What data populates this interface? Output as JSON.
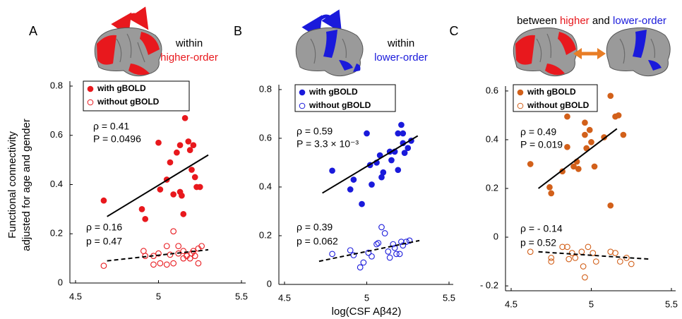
{
  "chart_data": [
    {
      "type": "scatter",
      "panel_label": "A",
      "header": [
        {
          "text": "within",
          "color": "#000000"
        },
        {
          "text": "higher-order",
          "color": "#e8181d"
        }
      ],
      "ylabel": [
        "Functional connectivity",
        "adjusted for age and gender"
      ],
      "xlim": [
        4.5,
        5.5
      ],
      "xticks": [
        4.5,
        5,
        5.5
      ],
      "ylim": [
        0,
        0.82
      ],
      "yticks": [
        0,
        0.2,
        0.4,
        0.6,
        0.8
      ],
      "series": [
        {
          "name": "with gBOLD",
          "color": "#e8181d",
          "marker": "filled",
          "x": [
            4.67,
            4.9,
            4.92,
            5.0,
            5.01,
            5.05,
            5.07,
            5.09,
            5.11,
            5.13,
            5.13,
            5.15,
            5.16,
            5.14,
            5.18,
            5.19,
            5.2,
            5.21,
            5.22,
            5.23,
            5.25
          ],
          "y": [
            0.335,
            0.3,
            0.26,
            0.57,
            0.38,
            0.42,
            0.49,
            0.36,
            0.53,
            0.56,
            0.37,
            0.28,
            0.67,
            0.355,
            0.575,
            0.54,
            0.46,
            0.56,
            0.43,
            0.39,
            0.39
          ]
        },
        {
          "name": "without gBOLD",
          "color": "#e8181d",
          "marker": "open",
          "x": [
            4.67,
            4.91,
            4.92,
            4.97,
            4.97,
            5.0,
            5.01,
            5.05,
            5.05,
            5.07,
            5.09,
            5.09,
            5.12,
            5.12,
            5.15,
            5.15,
            5.17,
            5.19,
            5.2,
            5.21,
            5.22,
            5.24,
            5.24,
            5.26
          ],
          "y": [
            0.07,
            0.13,
            0.11,
            0.075,
            0.11,
            0.12,
            0.08,
            0.15,
            0.075,
            0.115,
            0.21,
            0.08,
            0.15,
            0.12,
            0.1,
            0.13,
            0.11,
            0.1,
            0.12,
            0.13,
            0.11,
            0.08,
            0.14,
            0.15
          ]
        }
      ],
      "trend_lines": [
        {
          "style": "solid",
          "x": [
            4.69,
            5.3
          ],
          "y": [
            0.27,
            0.52
          ]
        },
        {
          "style": "dashed",
          "x": [
            4.69,
            5.3
          ],
          "y": [
            0.09,
            0.135
          ]
        }
      ],
      "annotations": [
        {
          "text": "ρ = 0.41",
          "color": "#000000"
        },
        {
          "text": "P = 0.0496",
          "color": "#000000"
        },
        {
          "text": "ρ = 0.16",
          "color": "#808080"
        },
        {
          "text": "p = 0.47",
          "color": "#808080"
        }
      ]
    },
    {
      "type": "scatter",
      "panel_label": "B",
      "header": [
        {
          "text": "within",
          "color": "#000000"
        },
        {
          "text": "lower-order",
          "color": "#1a1adb"
        }
      ],
      "xlabel": "log(CSF Aβ42)",
      "xlim": [
        4.5,
        5.5
      ],
      "xticks": [
        4.5,
        5,
        5.5
      ],
      "ylim": [
        0,
        0.82
      ],
      "yticks": [
        0,
        0.2,
        0.4,
        0.6,
        0.8
      ],
      "series": [
        {
          "name": "with gBOLD",
          "color": "#1a1adb",
          "marker": "filled",
          "x": [
            4.79,
            4.9,
            4.92,
            4.97,
            5.0,
            5.02,
            5.03,
            5.06,
            5.08,
            5.09,
            5.1,
            5.14,
            5.15,
            5.17,
            5.19,
            5.19,
            5.21,
            5.22,
            5.23,
            5.25,
            5.27,
            5.22
          ],
          "y": [
            0.467,
            0.39,
            0.43,
            0.33,
            0.62,
            0.49,
            0.41,
            0.5,
            0.53,
            0.44,
            0.46,
            0.545,
            0.51,
            0.545,
            0.47,
            0.62,
            0.655,
            0.58,
            0.54,
            0.56,
            0.59,
            0.62
          ]
        },
        {
          "name": "without gBOLD",
          "color": "#1a1adb",
          "marker": "open",
          "x": [
            4.79,
            4.9,
            4.92,
            4.96,
            4.98,
            5.01,
            5.03,
            5.06,
            5.07,
            5.09,
            5.11,
            5.13,
            5.14,
            5.16,
            5.17,
            5.2,
            5.21,
            5.22,
            5.24,
            5.26,
            5.18
          ],
          "y": [
            0.125,
            0.14,
            0.12,
            0.07,
            0.09,
            0.13,
            0.115,
            0.165,
            0.17,
            0.235,
            0.21,
            0.135,
            0.11,
            0.165,
            0.15,
            0.125,
            0.175,
            0.16,
            0.175,
            0.18,
            0.125
          ]
        }
      ],
      "trend_lines": [
        {
          "style": "solid",
          "x": [
            4.73,
            5.31
          ],
          "y": [
            0.375,
            0.61
          ]
        },
        {
          "style": "dashed",
          "x": [
            4.71,
            5.32
          ],
          "y": [
            0.095,
            0.18
          ]
        }
      ],
      "annotations": [
        {
          "text": "ρ = 0.59",
          "color": "#000000"
        },
        {
          "text": "P = 3.3 × 10⁻³",
          "color": "#000000"
        },
        {
          "text": "ρ = 0.39",
          "color": "#808080"
        },
        {
          "text": "p = 0.062",
          "color": "#808080"
        }
      ]
    },
    {
      "type": "scatter",
      "panel_label": "C",
      "header": [
        {
          "text": "between",
          "color": "#000000"
        },
        {
          "text": "higher",
          "color": "#e8181d"
        },
        {
          "text": "and",
          "color": "#000000"
        },
        {
          "text": "lower-order",
          "color": "#1a1adb"
        }
      ],
      "xlim": [
        4.5,
        5.5
      ],
      "xticks": [
        4.5,
        5,
        5.5
      ],
      "ylim": [
        -0.22,
        0.62
      ],
      "yticks": [
        {
          "value": -0.2,
          "label": "- 0.2"
        },
        0,
        0.2,
        0.4,
        0.6
      ],
      "series": [
        {
          "name": "with gBOLD",
          "color": "#d2601a",
          "marker": "filled",
          "x": [
            4.62,
            4.74,
            4.75,
            4.82,
            4.85,
            4.85,
            4.89,
            4.91,
            4.92,
            4.96,
            4.96,
            4.97,
            4.99,
            5.0,
            5.08,
            5.12,
            5.15,
            5.17,
            5.2,
            5.12,
            5.02
          ],
          "y": [
            0.3,
            0.205,
            0.18,
            0.27,
            0.495,
            0.37,
            0.29,
            0.31,
            0.28,
            0.47,
            0.42,
            0.365,
            0.44,
            0.39,
            0.41,
            0.58,
            0.495,
            0.5,
            0.42,
            0.13,
            0.29
          ]
        },
        {
          "name": "without gBOLD",
          "color": "#d2601a",
          "marker": "open",
          "x": [
            4.62,
            4.75,
            4.75,
            4.82,
            4.85,
            4.86,
            4.88,
            4.9,
            4.94,
            4.95,
            4.96,
            4.98,
            5.01,
            5.03,
            5.12,
            5.15,
            5.18,
            5.22,
            5.25
          ],
          "y": [
            -0.06,
            -0.085,
            -0.1,
            -0.04,
            -0.04,
            -0.09,
            -0.065,
            -0.085,
            -0.06,
            -0.12,
            -0.165,
            -0.04,
            -0.065,
            -0.1,
            -0.06,
            -0.065,
            -0.1,
            -0.085,
            -0.11
          ]
        }
      ],
      "trend_lines": [
        {
          "style": "solid",
          "x": [
            4.67,
            5.16
          ],
          "y": [
            0.2,
            0.445
          ]
        },
        {
          "style": "dashed",
          "x": [
            4.67,
            5.36
          ],
          "y": [
            -0.06,
            -0.09
          ]
        }
      ],
      "annotations": [
        {
          "text": "ρ = 0.49",
          "color": "#000000"
        },
        {
          "text": "P = 0.019",
          "color": "#000000"
        },
        {
          "text": "ρ = - 0.14",
          "color": "#808080"
        },
        {
          "text": "p = 0.52",
          "color": "#808080"
        }
      ]
    }
  ]
}
